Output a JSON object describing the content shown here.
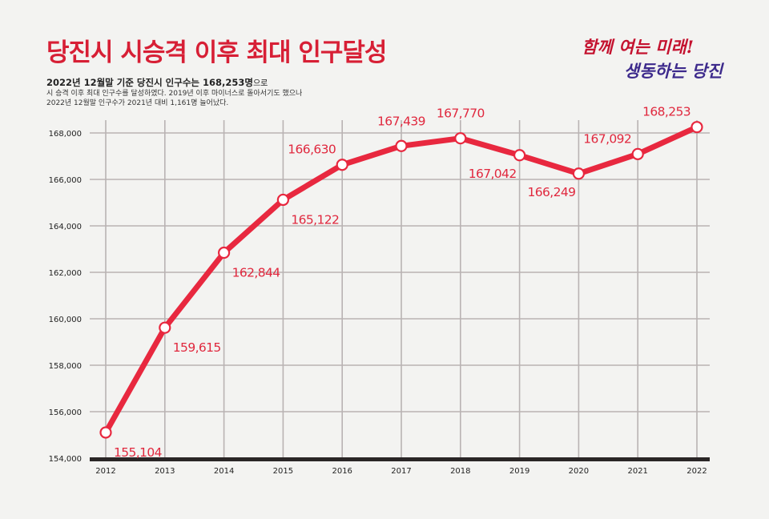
{
  "title": "당진시 시승격 이후 최대 인구달성",
  "subtitle": {
    "line1": "2022년 12월말 기준 당진시 인구수는 168,253명",
    "line1_suffix": "으로",
    "line2": "시 승격 이후 최대 인구수를 달성하였다. 2019년 이후 마이너스로 돌아서기도 했으나",
    "line3": "2022년 12월말 인구수가 2021년 대비 1,161명 늘어났다."
  },
  "slogan": {
    "line1": "함께 여는 미래!",
    "line2": "생동하는 당진"
  },
  "colors": {
    "line": "#e8283f",
    "label": "#e0283e",
    "title": "#d71f35",
    "grid": "#b9b3b3",
    "axis": "#2a2626"
  },
  "chart_data": {
    "type": "line",
    "categories": [
      "2012",
      "2013",
      "2014",
      "2015",
      "2016",
      "2017",
      "2018",
      "2019",
      "2020",
      "2021",
      "2022"
    ],
    "values": [
      155104,
      159615,
      162844,
      165122,
      166630,
      167439,
      167770,
      167042,
      166249,
      167092,
      168253
    ],
    "data_labels": [
      "155,104",
      "159,615",
      "162,844",
      "165,122",
      "166,630",
      "167,439",
      "167,770",
      "167,042",
      "166,249",
      "167,092",
      "168,253"
    ],
    "yticks": [
      154000,
      156000,
      158000,
      160000,
      162000,
      164000,
      166000,
      168000
    ],
    "ytick_labels": [
      "154,000",
      "156,000",
      "158,000",
      "160,000",
      "162,000",
      "164,000",
      "166,000",
      "168,000"
    ],
    "ylim": [
      154000,
      169500
    ],
    "grid": true,
    "label_positions": [
      "below-right",
      "below-right",
      "below-right",
      "below-right",
      "above-left",
      "above",
      "above",
      "below-left",
      "below-left",
      "above-left",
      "above-left"
    ]
  }
}
